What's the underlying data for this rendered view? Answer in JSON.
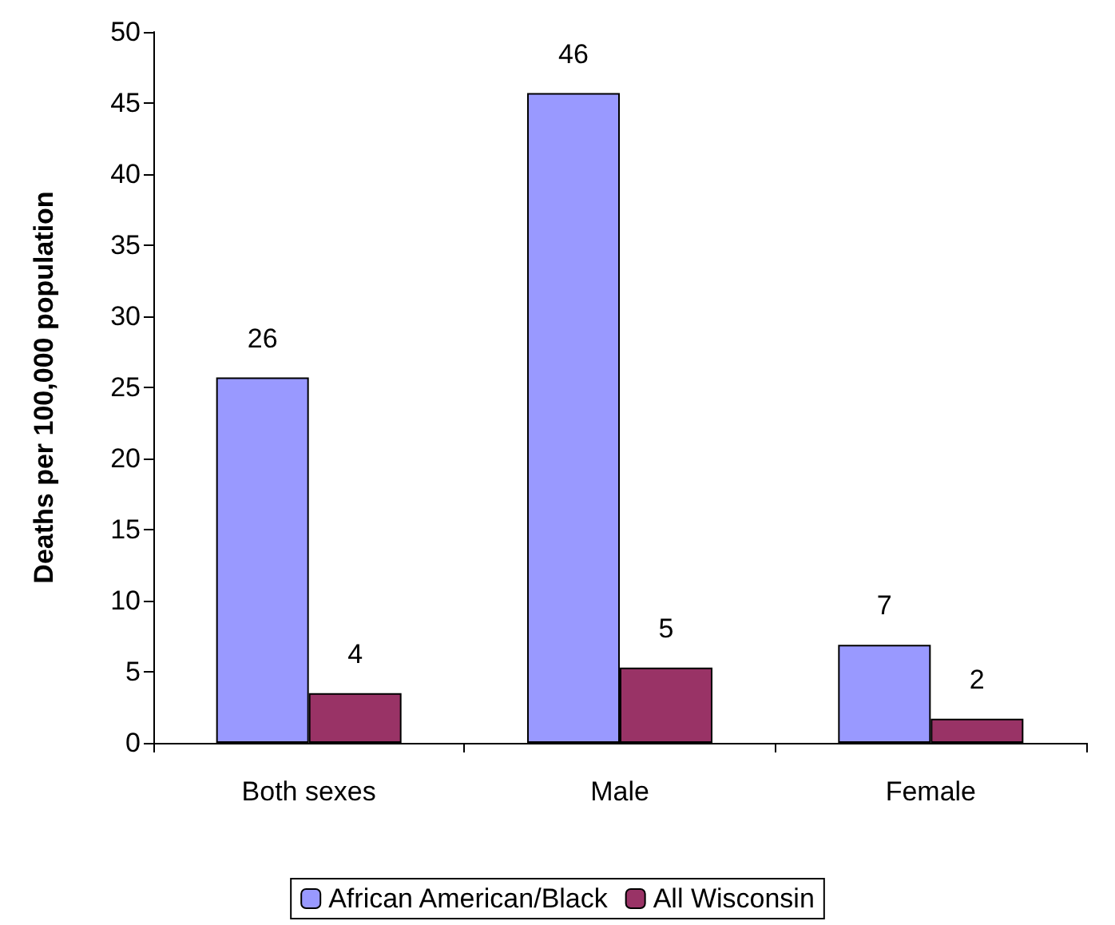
{
  "chart_data": {
    "type": "bar",
    "ylabel": "Deaths per 100,000 population",
    "categories": [
      "Both sexes",
      "Male",
      "Female"
    ],
    "series": [
      {
        "name": "African American/Black",
        "color": "#9999ff",
        "values": [
          25.7,
          45.7,
          6.9
        ],
        "value_labels": [
          "26",
          "46",
          "7"
        ]
      },
      {
        "name": "All Wisconsin",
        "color": "#993366",
        "values": [
          3.5,
          5.3,
          1.7
        ],
        "value_labels": [
          "4",
          "5",
          "2"
        ]
      }
    ],
    "ylim": [
      0,
      50
    ],
    "yticks": [
      0,
      5,
      10,
      15,
      20,
      25,
      30,
      35,
      40,
      45,
      50
    ],
    "grid": false,
    "legend": "bottom"
  }
}
